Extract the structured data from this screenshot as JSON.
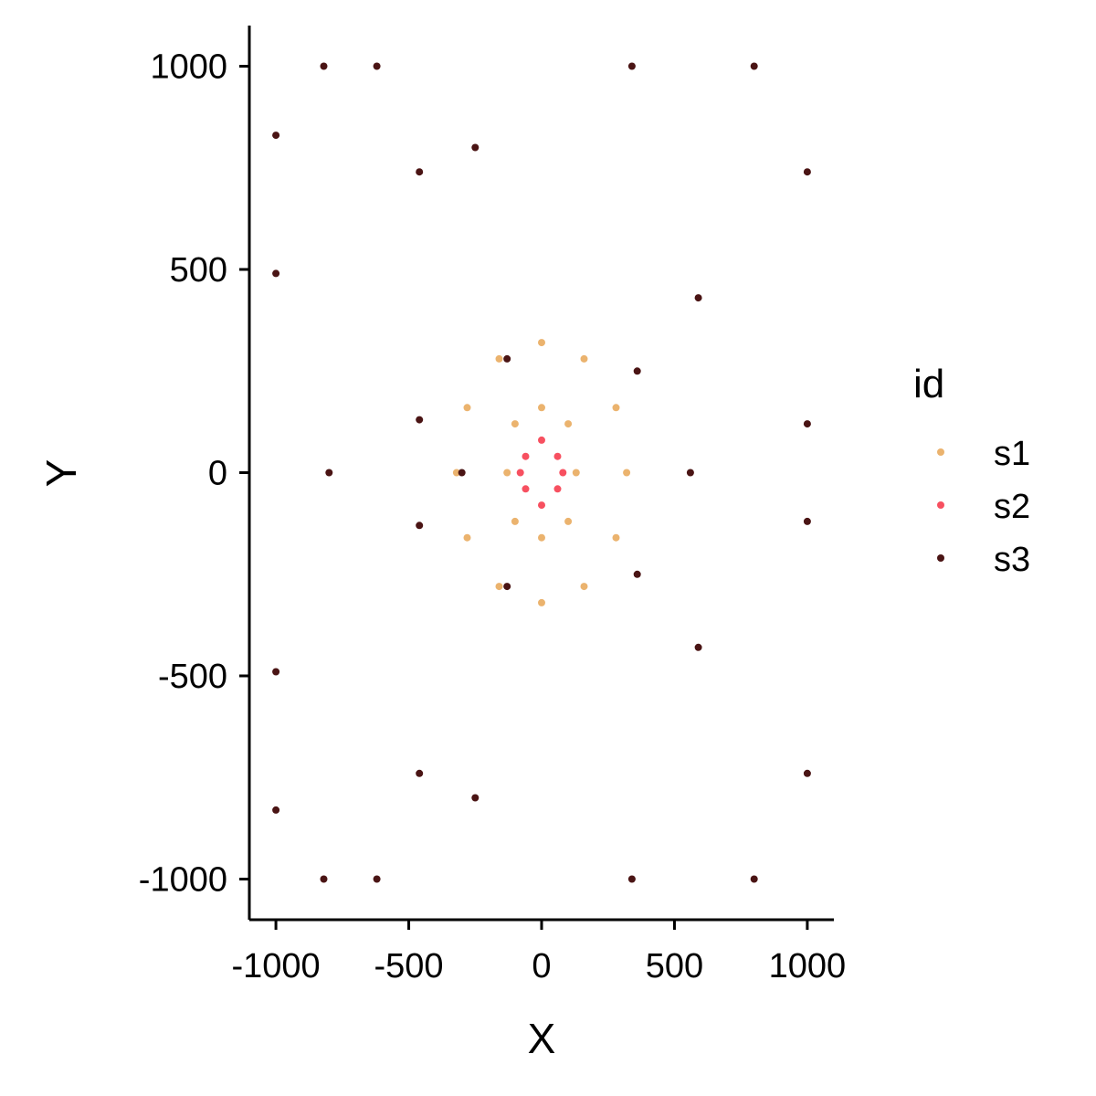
{
  "chart_data": {
    "type": "scatter",
    "title": "",
    "xlabel": "X",
    "ylabel": "Y",
    "xlim": [
      -1100,
      1100
    ],
    "ylim": [
      -1100,
      1100
    ],
    "x_ticks": [
      -1000,
      -500,
      0,
      500,
      1000
    ],
    "y_ticks": [
      -1000,
      -500,
      0,
      500,
      1000
    ],
    "x_tick_labels": [
      "-1000",
      "-500",
      "0",
      "500",
      "1000"
    ],
    "y_tick_labels": [
      "-1000",
      "-500",
      "0",
      "500",
      "1000"
    ],
    "grid": false,
    "legend": {
      "title": "id",
      "placement": "right",
      "entries": [
        "s1",
        "s2",
        "s3"
      ]
    },
    "series": [
      {
        "name": "s1",
        "color": "#EBB36E",
        "description_points": "multi-petal rosette of loops centered near (0,0), extent x in [-320, 320], y in [-320, 320]",
        "points": [
          [
            0,
            320
          ],
          [
            160,
            280
          ],
          [
            280,
            160
          ],
          [
            320,
            0
          ],
          [
            280,
            -160
          ],
          [
            160,
            -280
          ],
          [
            0,
            -320
          ],
          [
            -160,
            -280
          ],
          [
            -280,
            -160
          ],
          [
            -320,
            0
          ],
          [
            -280,
            160
          ],
          [
            -160,
            280
          ],
          [
            -100,
            120
          ],
          [
            0,
            160
          ],
          [
            100,
            120
          ],
          [
            130,
            0
          ],
          [
            100,
            -120
          ],
          [
            0,
            -160
          ],
          [
            -100,
            -120
          ],
          [
            -130,
            0
          ]
        ]
      },
      {
        "name": "s2",
        "color": "#F75060",
        "points": [
          [
            0,
            80
          ],
          [
            60,
            40
          ],
          [
            80,
            0
          ],
          [
            60,
            -40
          ],
          [
            0,
            -80
          ],
          [
            -60,
            -40
          ],
          [
            -80,
            0
          ],
          [
            -60,
            40
          ]
        ]
      },
      {
        "name": "s3",
        "color": "#4A1414",
        "points": [
          [
            -1000,
            830
          ],
          [
            -820,
            1000
          ],
          [
            -1000,
            490
          ],
          [
            -460,
            740
          ],
          [
            -130,
            280
          ],
          [
            -1000,
            -490
          ],
          [
            -460,
            -740
          ],
          [
            -130,
            -280
          ],
          [
            -620,
            1000
          ],
          [
            -800,
            0
          ],
          [
            -620,
            -1000
          ],
          [
            -1000,
            -830
          ],
          [
            -820,
            -1000
          ],
          [
            340,
            1000
          ],
          [
            590,
            430
          ],
          [
            1000,
            120
          ],
          [
            340,
            -1000
          ],
          [
            590,
            -430
          ],
          [
            1000,
            -120
          ],
          [
            -460,
            130
          ],
          [
            -460,
            -130
          ],
          [
            -300,
            0
          ],
          [
            800,
            1000
          ],
          [
            1000,
            740
          ],
          [
            800,
            -1000
          ],
          [
            1000,
            -740
          ],
          [
            -250,
            800
          ],
          [
            -250,
            -800
          ],
          [
            560,
            0
          ],
          [
            360,
            250
          ],
          [
            360,
            -250
          ]
        ]
      }
    ]
  }
}
